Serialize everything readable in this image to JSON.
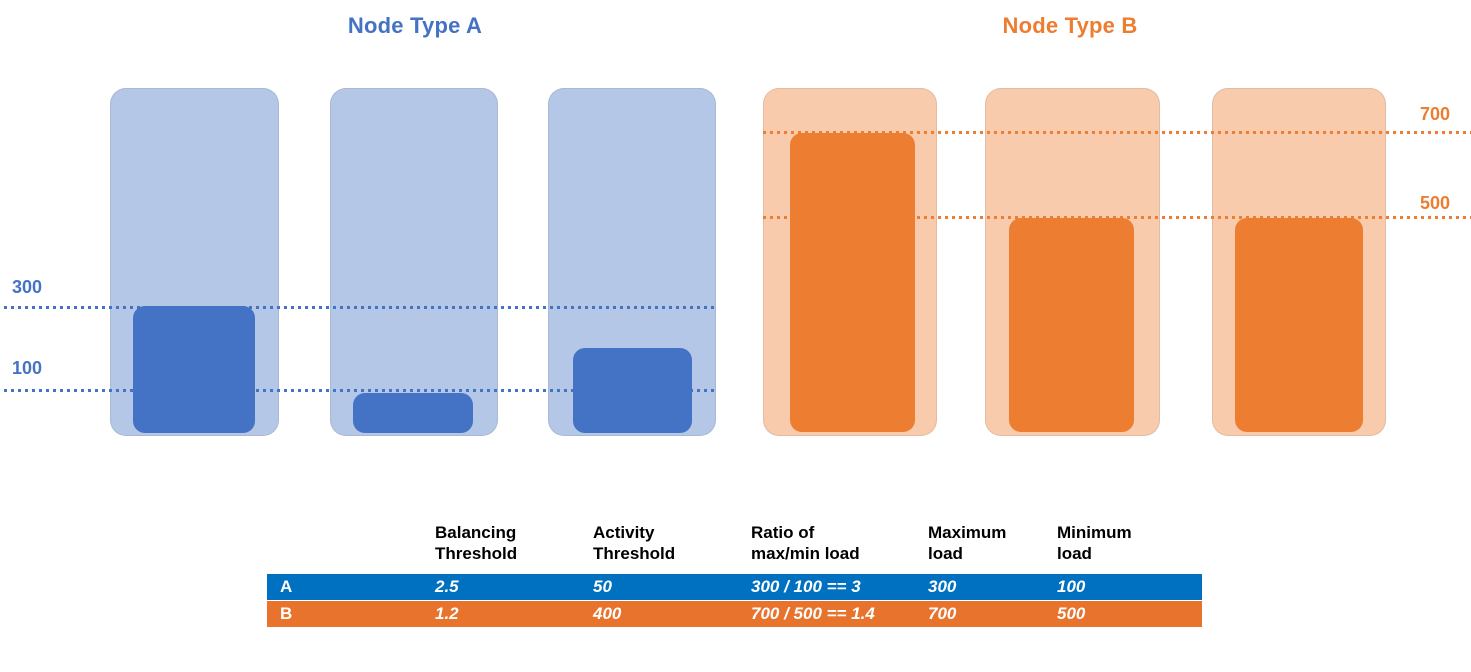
{
  "diagram": {
    "node_type_a": {
      "title": "Node Type A",
      "accent_color": "#4472C4",
      "capacity_fill": "#B4C7E7",
      "load_fill": "#4472C4",
      "guides": [
        {
          "label": "300",
          "value": 300
        },
        {
          "label": "100",
          "value": 100
        }
      ],
      "node_loads": [
        300,
        100,
        200
      ]
    },
    "node_type_b": {
      "title": "Node Type B",
      "accent_color": "#ED7D31",
      "capacity_fill": "#F8CBAD",
      "load_fill": "#ED7D31",
      "guides": [
        {
          "label": "700",
          "value": 700
        },
        {
          "label": "500",
          "value": 500
        }
      ],
      "node_loads": [
        700,
        500,
        500
      ]
    }
  },
  "table": {
    "columns": [
      "Balancing Threshold",
      "Activity Threshold",
      "Ratio of max/min load",
      "Maximum load",
      "Minimum load"
    ],
    "rows": [
      {
        "label": "A",
        "row_color": "#0070C0",
        "cells": [
          "2.5",
          "50",
          "300 / 100 == 3",
          "300",
          "100"
        ]
      },
      {
        "label": "B",
        "row_color": "#E8732C",
        "cells": [
          "1.2",
          "400",
          "700 / 500 == 1.4",
          "700",
          "500"
        ]
      }
    ]
  }
}
